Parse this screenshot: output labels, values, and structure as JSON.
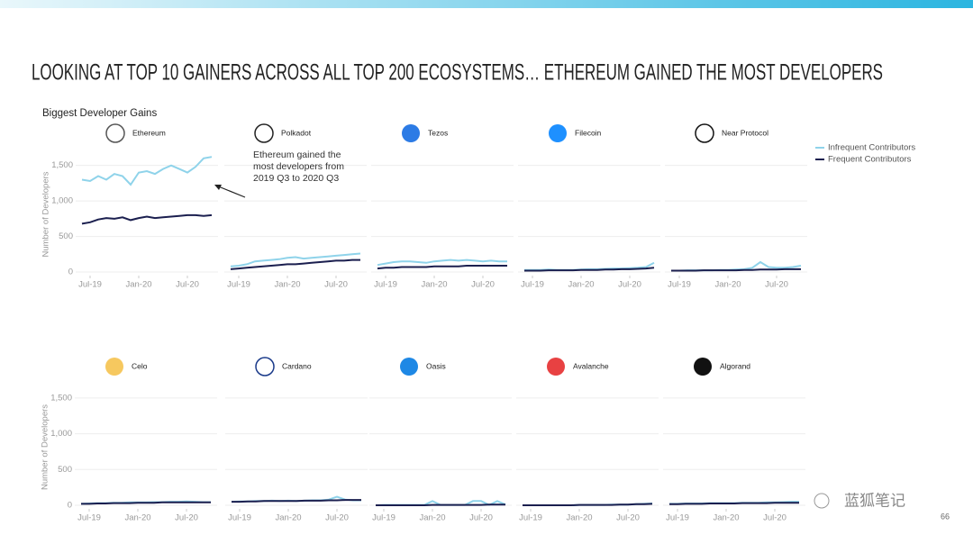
{
  "title": "LOOKING AT TOP 10 GAINERS ACROSS ALL TOP 200 ECOSYSTEMS… ETHEREUM GAINED THE MOST DEVELOPERS",
  "subtitle": "Biggest Developer Gains",
  "page_number": "66",
  "watermark": "蓝狐笔记",
  "chart_data": [
    {
      "type": "line",
      "title": "Ethereum",
      "ylabel": "Number of Developers",
      "show_ytick_labels": true,
      "annotation": "Ethereum gained the most developers from 2019 Q3 to 2020 Q3",
      "categories": [
        null,
        "Jul-19",
        null,
        null,
        null,
        null,
        null,
        "Jan-20",
        null,
        null,
        null,
        null,
        null,
        "Jul-20",
        null,
        null,
        null
      ],
      "series": [
        {
          "name": "Infrequent Contributors",
          "color": "#8fd3ea",
          "values": [
            1300,
            1280,
            1350,
            1300,
            1380,
            1350,
            1230,
            1400,
            1420,
            1380,
            1450,
            1500,
            1450,
            1400,
            1480,
            1600,
            1620
          ]
        },
        {
          "name": "Frequent Contributors",
          "color": "#1b1f4f",
          "values": [
            680,
            700,
            740,
            760,
            750,
            770,
            730,
            760,
            780,
            760,
            770,
            780,
            790,
            800,
            800,
            790,
            800
          ]
        }
      ],
      "ylim": [
        -50,
        1800
      ],
      "yticks": [
        0,
        500,
        {
          "value": 1000,
          "label": "1,000"
        },
        {
          "value": 1500,
          "label": "1,500"
        }
      ],
      "grid": true
    },
    {
      "type": "line",
      "title": "Polkadot",
      "show_ytick_labels": false,
      "categories": [
        null,
        "Jul-19",
        null,
        null,
        null,
        null,
        null,
        "Jan-20",
        null,
        null,
        null,
        null,
        null,
        "Jul-20",
        null,
        null,
        null
      ],
      "series": [
        {
          "color": "#8fd3ea",
          "values": [
            80,
            90,
            110,
            150,
            160,
            170,
            180,
            200,
            210,
            190,
            200,
            210,
            220,
            230,
            240,
            250,
            260
          ]
        },
        {
          "color": "#1b1f4f",
          "values": [
            40,
            50,
            60,
            70,
            80,
            90,
            100,
            110,
            110,
            120,
            130,
            140,
            150,
            160,
            160,
            170,
            170
          ]
        }
      ],
      "ylim": [
        -50,
        1800
      ],
      "yticks": [
        0,
        500,
        1000,
        1500
      ],
      "grid": true
    },
    {
      "type": "line",
      "title": "Tezos",
      "show_ytick_labels": false,
      "categories": [
        null,
        "Jul-19",
        null,
        null,
        null,
        null,
        null,
        "Jan-20",
        null,
        null,
        null,
        null,
        null,
        "Jul-20",
        null,
        null,
        null
      ],
      "series": [
        {
          "color": "#8fd3ea",
          "values": [
            100,
            120,
            140,
            150,
            150,
            140,
            130,
            150,
            160,
            170,
            160,
            170,
            160,
            150,
            160,
            150,
            150
          ]
        },
        {
          "color": "#1b1f4f",
          "values": [
            50,
            60,
            60,
            70,
            70,
            70,
            70,
            80,
            80,
            80,
            80,
            90,
            90,
            90,
            90,
            90,
            90
          ]
        }
      ],
      "ylim": [
        -50,
        1800
      ],
      "yticks": [
        0,
        500,
        1000,
        1500
      ],
      "grid": true
    },
    {
      "type": "line",
      "title": "Filecoin",
      "show_ytick_labels": false,
      "categories": [
        null,
        "Jul-19",
        null,
        null,
        null,
        null,
        null,
        "Jan-20",
        null,
        null,
        null,
        null,
        null,
        "Jul-20",
        null,
        null,
        null
      ],
      "series": [
        {
          "color": "#8fd3ea",
          "values": [
            30,
            30,
            30,
            35,
            30,
            30,
            30,
            35,
            40,
            40,
            45,
            50,
            50,
            55,
            60,
            70,
            130
          ]
        },
        {
          "color": "#1b1f4f",
          "values": [
            20,
            20,
            20,
            25,
            25,
            25,
            25,
            30,
            30,
            30,
            35,
            35,
            40,
            40,
            45,
            50,
            60
          ]
        }
      ],
      "ylim": [
        -50,
        1800
      ],
      "yticks": [
        0,
        500,
        1000,
        1500
      ],
      "grid": true
    },
    {
      "type": "line",
      "title": "Near Protocol",
      "show_ytick_labels": false,
      "categories": [
        null,
        "Jul-19",
        null,
        null,
        null,
        null,
        null,
        "Jan-20",
        null,
        null,
        null,
        null,
        null,
        "Jul-20",
        null,
        null,
        null
      ],
      "series": [
        {
          "color": "#8fd3ea",
          "values": [
            20,
            20,
            25,
            25,
            25,
            25,
            30,
            30,
            35,
            40,
            60,
            140,
            70,
            60,
            60,
            70,
            90
          ]
        },
        {
          "color": "#1b1f4f",
          "values": [
            20,
            20,
            20,
            20,
            25,
            25,
            25,
            25,
            25,
            30,
            30,
            35,
            35,
            35,
            40,
            40,
            40
          ]
        }
      ],
      "ylim": [
        -50,
        1800
      ],
      "yticks": [
        0,
        500,
        1000,
        1500
      ],
      "grid": true
    },
    {
      "type": "line",
      "title": "Celo",
      "ylabel": "Number of Developers",
      "show_ytick_labels": true,
      "categories": [
        null,
        "Jul-19",
        null,
        null,
        null,
        null,
        null,
        "Jan-20",
        null,
        null,
        null,
        null,
        null,
        "Jul-20",
        null,
        null,
        null
      ],
      "series": [
        {
          "color": "#8fd3ea",
          "values": [
            20,
            25,
            30,
            30,
            35,
            35,
            40,
            40,
            40,
            45,
            45,
            50,
            50,
            55,
            50,
            45,
            45
          ]
        },
        {
          "color": "#1b1f4f",
          "values": [
            20,
            20,
            25,
            25,
            30,
            30,
            30,
            35,
            35,
            35,
            40,
            40,
            40,
            40,
            40,
            40,
            40
          ]
        }
      ],
      "ylim": [
        -50,
        1800
      ],
      "yticks": [
        0,
        500,
        {
          "value": 1000,
          "label": "1,000"
        },
        {
          "value": 1500,
          "label": "1,500"
        }
      ],
      "grid": true
    },
    {
      "type": "line",
      "title": "Cardano",
      "show_ytick_labels": false,
      "categories": [
        null,
        "Jul-19",
        null,
        null,
        null,
        null,
        null,
        "Jan-20",
        null,
        null,
        null,
        null,
        null,
        "Jul-20",
        null,
        null,
        null
      ],
      "series": [
        {
          "color": "#8fd3ea",
          "values": [
            50,
            55,
            55,
            60,
            60,
            65,
            60,
            65,
            60,
            65,
            70,
            70,
            80,
            120,
            80,
            70,
            70
          ]
        },
        {
          "color": "#1b1f4f",
          "values": [
            50,
            50,
            55,
            55,
            60,
            60,
            60,
            60,
            60,
            65,
            65,
            65,
            70,
            70,
            75,
            75,
            75
          ]
        }
      ],
      "ylim": [
        -50,
        1800
      ],
      "yticks": [
        0,
        500,
        1000,
        1500
      ],
      "grid": true
    },
    {
      "type": "line",
      "title": "Oasis",
      "show_ytick_labels": false,
      "categories": [
        null,
        "Jul-19",
        null,
        null,
        null,
        null,
        null,
        "Jan-20",
        null,
        null,
        null,
        null,
        null,
        "Jul-20",
        null,
        null,
        null
      ],
      "series": [
        {
          "color": "#8fd3ea",
          "values": [
            0,
            5,
            5,
            5,
            5,
            5,
            5,
            60,
            5,
            5,
            5,
            5,
            60,
            60,
            5,
            60,
            10
          ]
        },
        {
          "color": "#1b1f4f",
          "values": [
            0,
            0,
            0,
            0,
            0,
            0,
            0,
            5,
            5,
            5,
            5,
            5,
            5,
            5,
            10,
            10,
            10
          ]
        }
      ],
      "ylim": [
        -50,
        1800
      ],
      "yticks": [
        0,
        500,
        1000,
        1500
      ],
      "grid": true
    },
    {
      "type": "line",
      "title": "Avalanche",
      "show_ytick_labels": false,
      "categories": [
        null,
        "Jul-19",
        null,
        null,
        null,
        null,
        null,
        "Jan-20",
        null,
        null,
        null,
        null,
        null,
        "Jul-20",
        null,
        null,
        null
      ],
      "series": [
        {
          "color": "#8fd3ea",
          "values": [
            0,
            0,
            0,
            0,
            0,
            0,
            0,
            5,
            5,
            5,
            5,
            10,
            10,
            10,
            15,
            20,
            25
          ]
        },
        {
          "color": "#1b1f4f",
          "values": [
            0,
            0,
            0,
            0,
            0,
            0,
            0,
            5,
            5,
            5,
            5,
            5,
            10,
            10,
            15,
            15,
            20
          ]
        }
      ],
      "ylim": [
        -50,
        1800
      ],
      "yticks": [
        0,
        500,
        1000,
        1500
      ],
      "grid": true
    },
    {
      "type": "line",
      "title": "Algorand",
      "show_ytick_labels": false,
      "categories": [
        null,
        "Jul-19",
        null,
        null,
        null,
        null,
        null,
        "Jan-20",
        null,
        null,
        null,
        null,
        null,
        "Jul-20",
        null,
        null,
        null
      ],
      "series": [
        {
          "color": "#8fd3ea",
          "values": [
            20,
            20,
            25,
            25,
            25,
            30,
            30,
            30,
            30,
            35,
            35,
            35,
            40,
            40,
            45,
            50,
            50
          ]
        },
        {
          "color": "#1b1f4f",
          "values": [
            15,
            15,
            20,
            20,
            20,
            25,
            25,
            25,
            25,
            30,
            30,
            30,
            30,
            35,
            35,
            35,
            35
          ]
        }
      ],
      "ylim": [
        -50,
        1800
      ],
      "yticks": [
        0,
        500,
        1000,
        1500
      ],
      "grid": true
    }
  ]
}
